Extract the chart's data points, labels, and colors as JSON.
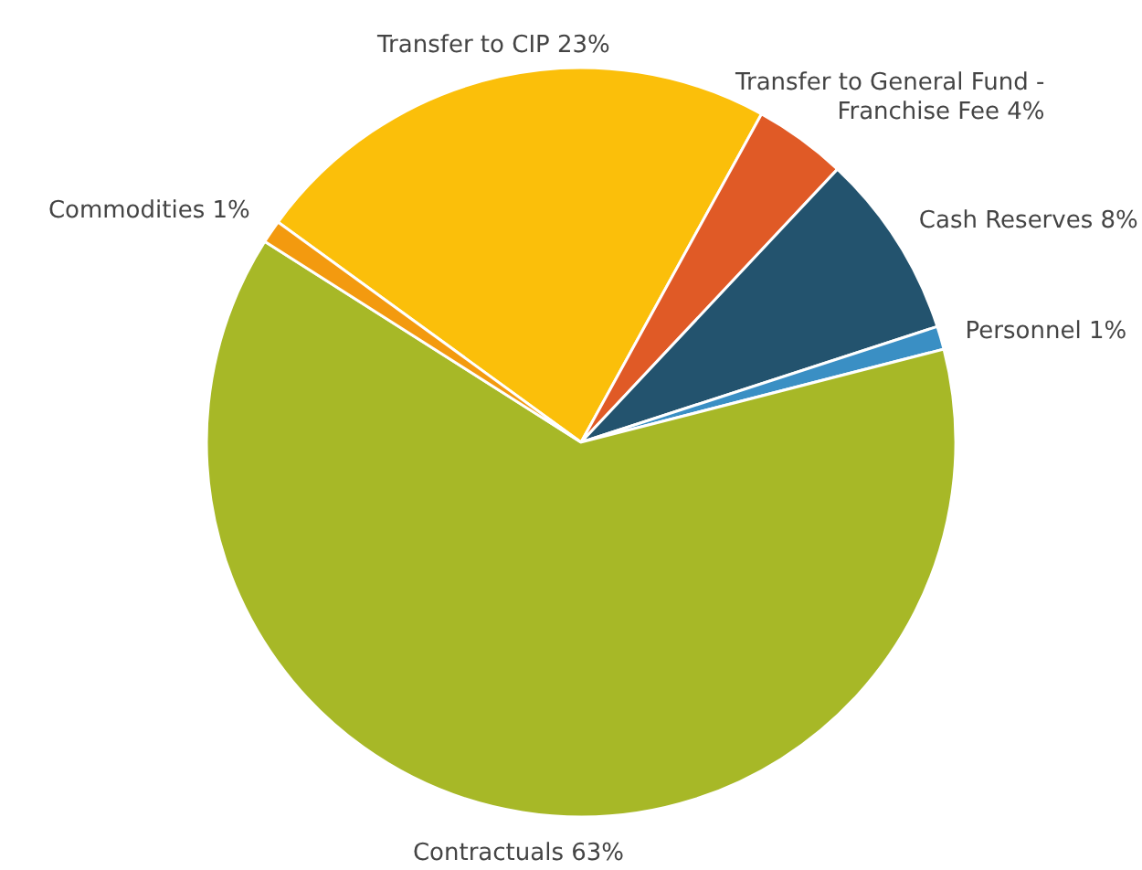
{
  "chart_data": {
    "type": "pie",
    "categories": [
      "Transfer to CIP",
      "Transfer to General Fund - Franchise Fee",
      "Cash Reserves",
      "Personnel",
      "Contractuals",
      "Commodities"
    ],
    "values": [
      23,
      4,
      8,
      1,
      63,
      1
    ],
    "value_labels": [
      "23%",
      "4%",
      "8%",
      "1%",
      "63%",
      "1%"
    ],
    "colors": [
      "#fbbf0a",
      "#e05a26",
      "#23536e",
      "#3a8fc4",
      "#a7b827",
      "#f39a0f"
    ]
  }
}
